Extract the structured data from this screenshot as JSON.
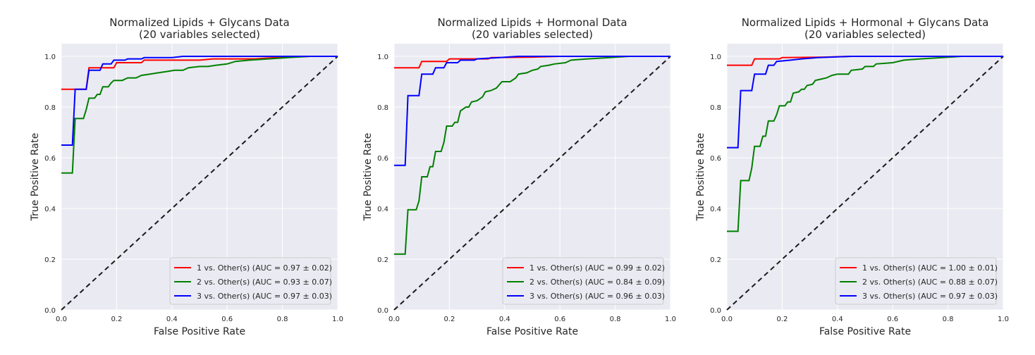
{
  "colors": {
    "background": "#EAEAF2",
    "grid": "#FFFFFF",
    "class1": "#FF0000",
    "class2": "#008000",
    "class3": "#0000FF",
    "diagonal": "#1A1A1A"
  },
  "chart_data": [
    {
      "type": "line",
      "title": "Normalized Lipids + Glycans Data",
      "subtitle": "(20 variables selected)",
      "xlabel": "False Positive Rate",
      "ylabel": "True Positive Rate",
      "xlim": [
        0,
        1
      ],
      "ylim": [
        0,
        1.05
      ],
      "xticks": [
        "0.0",
        "0.2",
        "0.4",
        "0.6",
        "0.8",
        "1.0"
      ],
      "yticks": [
        "0.0",
        "0.2",
        "0.4",
        "0.6",
        "0.8",
        "1.0"
      ],
      "grid": true,
      "legend_position": "lower-right",
      "series": [
        {
          "name": "1 vs. Other(s) (AUC = 0.97 ± 0.02)",
          "color": "#FF0000",
          "points": [
            [
              0,
              0.87
            ],
            [
              0.09,
              0.87
            ],
            [
              0.1,
              0.955
            ],
            [
              0.19,
              0.955
            ],
            [
              0.2,
              0.975
            ],
            [
              0.29,
              0.975
            ],
            [
              0.3,
              0.985
            ],
            [
              0.5,
              0.985
            ],
            [
              0.55,
              0.99
            ],
            [
              0.7,
              0.99
            ],
            [
              0.8,
              0.997
            ],
            [
              0.9,
              1.0
            ],
            [
              1.0,
              1.0
            ]
          ]
        },
        {
          "name": "2 vs. Other(s) (AUC = 0.93 ± 0.07)",
          "color": "#008000",
          "points": [
            [
              0,
              0.54
            ],
            [
              0.04,
              0.54
            ],
            [
              0.05,
              0.755
            ],
            [
              0.08,
              0.755
            ],
            [
              0.09,
              0.79
            ],
            [
              0.1,
              0.835
            ],
            [
              0.12,
              0.835
            ],
            [
              0.13,
              0.85
            ],
            [
              0.14,
              0.85
            ],
            [
              0.15,
              0.88
            ],
            [
              0.17,
              0.88
            ],
            [
              0.18,
              0.895
            ],
            [
              0.19,
              0.905
            ],
            [
              0.22,
              0.905
            ],
            [
              0.24,
              0.915
            ],
            [
              0.27,
              0.915
            ],
            [
              0.29,
              0.925
            ],
            [
              0.32,
              0.93
            ],
            [
              0.35,
              0.935
            ],
            [
              0.38,
              0.94
            ],
            [
              0.41,
              0.945
            ],
            [
              0.44,
              0.945
            ],
            [
              0.46,
              0.955
            ],
            [
              0.5,
              0.96
            ],
            [
              0.53,
              0.96
            ],
            [
              0.56,
              0.965
            ],
            [
              0.6,
              0.97
            ],
            [
              0.63,
              0.98
            ],
            [
              0.68,
              0.985
            ],
            [
              0.75,
              0.99
            ],
            [
              0.82,
              0.995
            ],
            [
              0.9,
              1.0
            ],
            [
              1.0,
              1.0
            ]
          ]
        },
        {
          "name": "3 vs. Other(s) (AUC = 0.97 ± 0.03)",
          "color": "#0000FF",
          "points": [
            [
              0,
              0.65
            ],
            [
              0.04,
              0.65
            ],
            [
              0.05,
              0.87
            ],
            [
              0.09,
              0.87
            ],
            [
              0.1,
              0.945
            ],
            [
              0.14,
              0.945
            ],
            [
              0.15,
              0.97
            ],
            [
              0.18,
              0.97
            ],
            [
              0.19,
              0.985
            ],
            [
              0.23,
              0.985
            ],
            [
              0.24,
              0.99
            ],
            [
              0.29,
              0.99
            ],
            [
              0.3,
              0.995
            ],
            [
              0.4,
              0.995
            ],
            [
              0.44,
              1.0
            ],
            [
              1.0,
              1.0
            ]
          ]
        }
      ]
    },
    {
      "type": "line",
      "title": "Normalized Lipids + Hormonal Data",
      "subtitle": "(20 variables selected)",
      "xlabel": "False Positive Rate",
      "ylabel": "True Positive Rate",
      "xlim": [
        0,
        1
      ],
      "ylim": [
        0,
        1.05
      ],
      "xticks": [
        "0.0",
        "0.2",
        "0.4",
        "0.6",
        "0.8",
        "1.0"
      ],
      "yticks": [
        "0.0",
        "0.2",
        "0.4",
        "0.6",
        "0.8",
        "1.0"
      ],
      "grid": true,
      "legend_position": "lower-right",
      "series": [
        {
          "name": "1 vs. Other(s) (AUC = 0.99 ± 0.02)",
          "color": "#FF0000",
          "points": [
            [
              0,
              0.955
            ],
            [
              0.09,
              0.955
            ],
            [
              0.1,
              0.98
            ],
            [
              0.19,
              0.98
            ],
            [
              0.2,
              0.99
            ],
            [
              0.34,
              0.99
            ],
            [
              0.35,
              0.995
            ],
            [
              0.5,
              0.997
            ],
            [
              0.6,
              1.0
            ],
            [
              1.0,
              1.0
            ]
          ]
        },
        {
          "name": "2 vs. Other(s) (AUC = 0.84 ± 0.09)",
          "color": "#008000",
          "points": [
            [
              0,
              0.22
            ],
            [
              0.04,
              0.22
            ],
            [
              0.05,
              0.395
            ],
            [
              0.08,
              0.395
            ],
            [
              0.09,
              0.43
            ],
            [
              0.1,
              0.525
            ],
            [
              0.12,
              0.525
            ],
            [
              0.13,
              0.565
            ],
            [
              0.14,
              0.565
            ],
            [
              0.15,
              0.625
            ],
            [
              0.17,
              0.625
            ],
            [
              0.18,
              0.66
            ],
            [
              0.19,
              0.725
            ],
            [
              0.21,
              0.725
            ],
            [
              0.22,
              0.74
            ],
            [
              0.23,
              0.74
            ],
            [
              0.24,
              0.785
            ],
            [
              0.26,
              0.8
            ],
            [
              0.27,
              0.8
            ],
            [
              0.28,
              0.82
            ],
            [
              0.3,
              0.825
            ],
            [
              0.32,
              0.84
            ],
            [
              0.33,
              0.86
            ],
            [
              0.35,
              0.865
            ],
            [
              0.37,
              0.875
            ],
            [
              0.39,
              0.9
            ],
            [
              0.42,
              0.9
            ],
            [
              0.44,
              0.915
            ],
            [
              0.45,
              0.93
            ],
            [
              0.48,
              0.935
            ],
            [
              0.5,
              0.945
            ],
            [
              0.52,
              0.95
            ],
            [
              0.53,
              0.96
            ],
            [
              0.56,
              0.965
            ],
            [
              0.58,
              0.97
            ],
            [
              0.62,
              0.975
            ],
            [
              0.64,
              0.985
            ],
            [
              0.7,
              0.99
            ],
            [
              0.78,
              0.995
            ],
            [
              0.85,
              1.0
            ],
            [
              1.0,
              1.0
            ]
          ]
        },
        {
          "name": "3 vs. Other(s) (AUC = 0.96 ± 0.03)",
          "color": "#0000FF",
          "points": [
            [
              0,
              0.57
            ],
            [
              0.04,
              0.57
            ],
            [
              0.05,
              0.845
            ],
            [
              0.09,
              0.845
            ],
            [
              0.1,
              0.93
            ],
            [
              0.14,
              0.93
            ],
            [
              0.15,
              0.955
            ],
            [
              0.18,
              0.955
            ],
            [
              0.19,
              0.975
            ],
            [
              0.23,
              0.975
            ],
            [
              0.24,
              0.985
            ],
            [
              0.29,
              0.985
            ],
            [
              0.3,
              0.99
            ],
            [
              0.38,
              0.995
            ],
            [
              0.45,
              1.0
            ],
            [
              1.0,
              1.0
            ]
          ]
        }
      ]
    },
    {
      "type": "line",
      "title": "Normalized Lipids + Hormonal + Glycans Data",
      "subtitle": "(20 variables selected)",
      "xlabel": "False Positive Rate",
      "ylabel": "True Positive Rate",
      "xlim": [
        0,
        1
      ],
      "ylim": [
        0,
        1.05
      ],
      "xticks": [
        "0.0",
        "0.2",
        "0.4",
        "0.6",
        "0.8",
        "1.0"
      ],
      "yticks": [
        "0.0",
        "0.2",
        "0.4",
        "0.6",
        "0.8",
        "1.0"
      ],
      "grid": true,
      "legend_position": "lower-right",
      "series": [
        {
          "name": "1 vs. Other(s) (AUC = 1.00 ± 0.01)",
          "color": "#FF0000",
          "points": [
            [
              0,
              0.965
            ],
            [
              0.09,
              0.965
            ],
            [
              0.1,
              0.99
            ],
            [
              0.19,
              0.99
            ],
            [
              0.2,
              0.995
            ],
            [
              0.35,
              0.997
            ],
            [
              0.45,
              1.0
            ],
            [
              1.0,
              1.0
            ]
          ]
        },
        {
          "name": "2 vs. Other(s) (AUC = 0.88 ± 0.07)",
          "color": "#008000",
          "points": [
            [
              0,
              0.31
            ],
            [
              0.04,
              0.31
            ],
            [
              0.05,
              0.51
            ],
            [
              0.08,
              0.51
            ],
            [
              0.09,
              0.56
            ],
            [
              0.1,
              0.645
            ],
            [
              0.12,
              0.645
            ],
            [
              0.13,
              0.685
            ],
            [
              0.14,
              0.685
            ],
            [
              0.15,
              0.745
            ],
            [
              0.17,
              0.745
            ],
            [
              0.18,
              0.77
            ],
            [
              0.19,
              0.805
            ],
            [
              0.21,
              0.805
            ],
            [
              0.22,
              0.82
            ],
            [
              0.23,
              0.82
            ],
            [
              0.24,
              0.855
            ],
            [
              0.26,
              0.86
            ],
            [
              0.27,
              0.87
            ],
            [
              0.28,
              0.87
            ],
            [
              0.29,
              0.885
            ],
            [
              0.31,
              0.89
            ],
            [
              0.32,
              0.905
            ],
            [
              0.34,
              0.91
            ],
            [
              0.36,
              0.915
            ],
            [
              0.38,
              0.925
            ],
            [
              0.4,
              0.93
            ],
            [
              0.44,
              0.93
            ],
            [
              0.45,
              0.945
            ],
            [
              0.49,
              0.95
            ],
            [
              0.5,
              0.96
            ],
            [
              0.53,
              0.96
            ],
            [
              0.54,
              0.97
            ],
            [
              0.6,
              0.975
            ],
            [
              0.64,
              0.985
            ],
            [
              0.7,
              0.99
            ],
            [
              0.78,
              0.995
            ],
            [
              0.85,
              1.0
            ],
            [
              1.0,
              1.0
            ]
          ]
        },
        {
          "name": "3 vs. Other(s) (AUC = 0.97 ± 0.03)",
          "color": "#0000FF",
          "points": [
            [
              0,
              0.64
            ],
            [
              0.04,
              0.64
            ],
            [
              0.05,
              0.865
            ],
            [
              0.09,
              0.865
            ],
            [
              0.1,
              0.93
            ],
            [
              0.14,
              0.93
            ],
            [
              0.15,
              0.965
            ],
            [
              0.17,
              0.965
            ],
            [
              0.18,
              0.98
            ],
            [
              0.23,
              0.985
            ],
            [
              0.27,
              0.99
            ],
            [
              0.33,
              0.995
            ],
            [
              0.45,
              1.0
            ],
            [
              1.0,
              1.0
            ]
          ]
        }
      ]
    }
  ]
}
